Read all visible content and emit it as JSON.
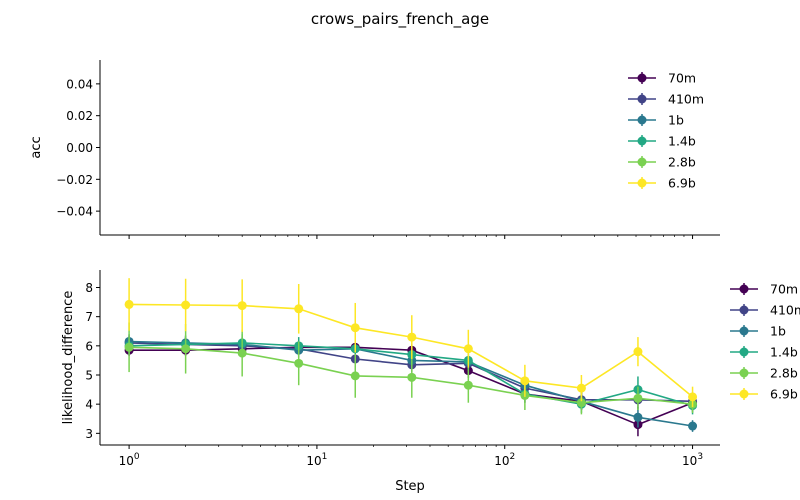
{
  "chart_data": {
    "type": "line",
    "title": "crows_pairs_french_age",
    "xlabel": "Step",
    "xscale": "log",
    "xlim": [
      0.7,
      1400
    ],
    "x_ticks": [
      {
        "value": 1,
        "base": "10",
        "exp": "0"
      },
      {
        "value": 10,
        "base": "10",
        "exp": "1"
      },
      {
        "value": 100,
        "base": "10",
        "exp": "2"
      },
      {
        "value": 1000,
        "base": "10",
        "exp": "3"
      }
    ],
    "x": [
      1,
      2,
      4,
      8,
      16,
      32,
      64,
      128,
      256,
      512,
      1000
    ],
    "legend_placement": "right",
    "panels": [
      {
        "ylabel": "acc",
        "ylim": [
          -0.055,
          0.055
        ],
        "y_ticks": [
          {
            "value": 0.04,
            "label": "0.04"
          },
          {
            "value": 0.02,
            "label": "0.02"
          },
          {
            "value": 0.0,
            "label": "0.00"
          },
          {
            "value": -0.02,
            "label": "−0.02"
          },
          {
            "value": -0.04,
            "label": "−0.04"
          }
        ],
        "series": []
      },
      {
        "ylabel": "likelihood_difference",
        "ylim": [
          2.6,
          8.6
        ],
        "y_ticks": [
          {
            "value": 3,
            "label": "3"
          },
          {
            "value": 4,
            "label": "4"
          },
          {
            "value": 5,
            "label": "5"
          },
          {
            "value": 6,
            "label": "6"
          },
          {
            "value": 7,
            "label": "7"
          },
          {
            "value": 8,
            "label": "8"
          }
        ],
        "series": [
          {
            "name": "70m",
            "color": "#440154",
            "values": [
              5.85,
              5.85,
              5.9,
              5.95,
              5.95,
              5.85,
              5.15,
              4.35,
              4.1,
              3.3,
              4.05
            ],
            "errors": [
              0.2,
              0.2,
              0.2,
              0.2,
              0.2,
              0.2,
              0.25,
              0.3,
              0.3,
              0.4,
              0.3
            ]
          },
          {
            "name": "410m",
            "color": "#414487",
            "values": [
              6.1,
              6.05,
              6.0,
              5.9,
              5.55,
              5.35,
              5.4,
              4.55,
              4.15,
              4.15,
              4.1
            ],
            "errors": [
              0.25,
              0.25,
              0.25,
              0.25,
              0.25,
              0.25,
              0.25,
              0.3,
              0.3,
              0.3,
              0.3
            ]
          },
          {
            "name": "1b",
            "color": "#2a788e",
            "values": [
              6.15,
              6.1,
              6.05,
              5.85,
              5.9,
              5.5,
              5.45,
              4.65,
              4.1,
              3.55,
              3.25
            ],
            "errors": [
              0.25,
              0.25,
              0.25,
              0.25,
              0.25,
              0.25,
              0.25,
              0.3,
              0.3,
              0.35,
              0.2
            ]
          },
          {
            "name": "1.4b",
            "color": "#22a884",
            "values": [
              6.0,
              6.05,
              6.1,
              6.0,
              5.9,
              5.7,
              5.5,
              4.35,
              4.0,
              4.5,
              3.95
            ],
            "errors": [
              0.3,
              0.3,
              0.3,
              0.3,
              0.3,
              0.3,
              0.3,
              0.3,
              0.3,
              0.45,
              0.3
            ]
          },
          {
            "name": "2.8b",
            "color": "#7ad151",
            "values": [
              5.95,
              5.9,
              5.75,
              5.4,
              4.97,
              4.92,
              4.65,
              4.3,
              4.05,
              4.2,
              4.0
            ],
            "errors": [
              0.85,
              0.85,
              0.8,
              0.75,
              0.75,
              0.7,
              0.6,
              0.5,
              0.4,
              0.4,
              0.3
            ]
          },
          {
            "name": "6.9b",
            "color": "#fde725",
            "values": [
              7.42,
              7.4,
              7.38,
              7.27,
              6.62,
              6.3,
              5.9,
              4.8,
              4.55,
              5.8,
              4.25
            ],
            "errors": [
              0.9,
              0.9,
              0.9,
              0.85,
              0.85,
              0.75,
              0.65,
              0.55,
              0.45,
              0.5,
              0.35
            ]
          }
        ]
      }
    ],
    "legend_entries": [
      "70m",
      "410m",
      "1b",
      "1.4b",
      "2.8b",
      "6.9b"
    ],
    "legend_colors": [
      "#440154",
      "#414487",
      "#2a788e",
      "#22a884",
      "#7ad151",
      "#fde725"
    ]
  }
}
